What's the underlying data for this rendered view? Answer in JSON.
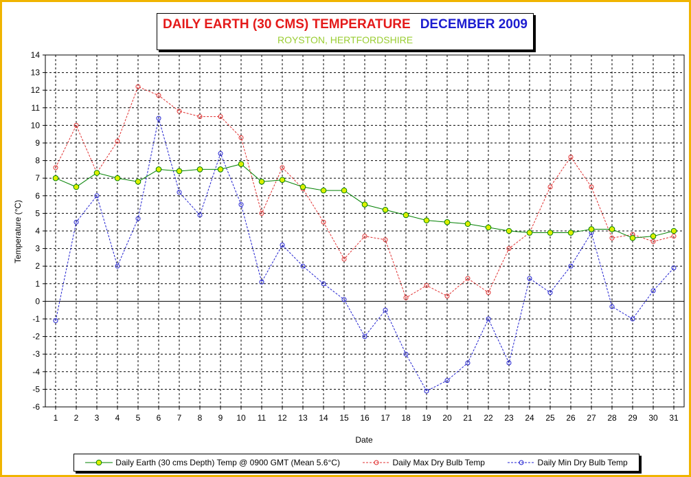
{
  "chart_data": {
    "type": "line",
    "title": "DAILY EARTH (30 CMS) TEMPERATURE",
    "title_period": "DECEMBER 2009",
    "subtitle": "ROYSTON, HERTFORDSHIRE",
    "xlabel": "Date",
    "ylabel": "Temperature (°C)",
    "ylim": [
      -6,
      14
    ],
    "yticks": [
      -6,
      -5,
      -4,
      -3,
      -2,
      -1,
      0,
      1,
      2,
      3,
      4,
      5,
      6,
      7,
      8,
      9,
      10,
      11,
      12,
      13,
      14
    ],
    "x": [
      1,
      2,
      3,
      4,
      5,
      6,
      7,
      8,
      9,
      10,
      11,
      12,
      13,
      14,
      15,
      16,
      17,
      18,
      19,
      20,
      21,
      22,
      23,
      24,
      25,
      26,
      27,
      28,
      29,
      30,
      31
    ],
    "grid": true,
    "legend_position": "bottom",
    "series": [
      {
        "name": "Daily Earth (30 cms Depth) Temp @ 0900 GMT (Mean 5.6°C)",
        "color": "#008000",
        "marker_color": "#DDF000",
        "values": [
          7.0,
          6.5,
          7.3,
          7.0,
          6.8,
          7.5,
          7.4,
          7.5,
          7.5,
          7.8,
          6.8,
          6.9,
          6.5,
          6.3,
          6.3,
          5.5,
          5.2,
          4.9,
          4.6,
          4.5,
          4.4,
          4.2,
          4.0,
          3.9,
          3.9,
          3.9,
          4.1,
          4.1,
          3.6,
          3.7,
          4.0
        ]
      },
      {
        "name": "Daily Max Dry Bulb Temp",
        "color": "#E03030",
        "values": [
          7.6,
          10.0,
          7.3,
          9.1,
          12.2,
          11.7,
          10.8,
          10.5,
          10.5,
          9.3,
          5.0,
          7.6,
          6.4,
          4.5,
          2.4,
          3.7,
          3.5,
          0.2,
          0.9,
          0.3,
          1.3,
          0.5,
          3.0,
          3.9,
          6.5,
          8.2,
          6.5,
          3.6,
          3.8,
          3.4,
          3.7
        ]
      },
      {
        "name": "Daily Min Dry Bulb Temp",
        "color": "#2020D0",
        "values": [
          -1.1,
          4.5,
          6.0,
          2.0,
          4.7,
          10.4,
          6.2,
          4.9,
          8.4,
          5.5,
          1.1,
          3.2,
          2.0,
          1.0,
          0.1,
          -2.0,
          -0.5,
          -3.0,
          -5.1,
          -4.5,
          -3.5,
          -1.0,
          -3.5,
          1.3,
          0.5,
          2.0,
          3.9,
          -0.3,
          -1.0,
          0.6,
          1.9
        ]
      }
    ]
  }
}
